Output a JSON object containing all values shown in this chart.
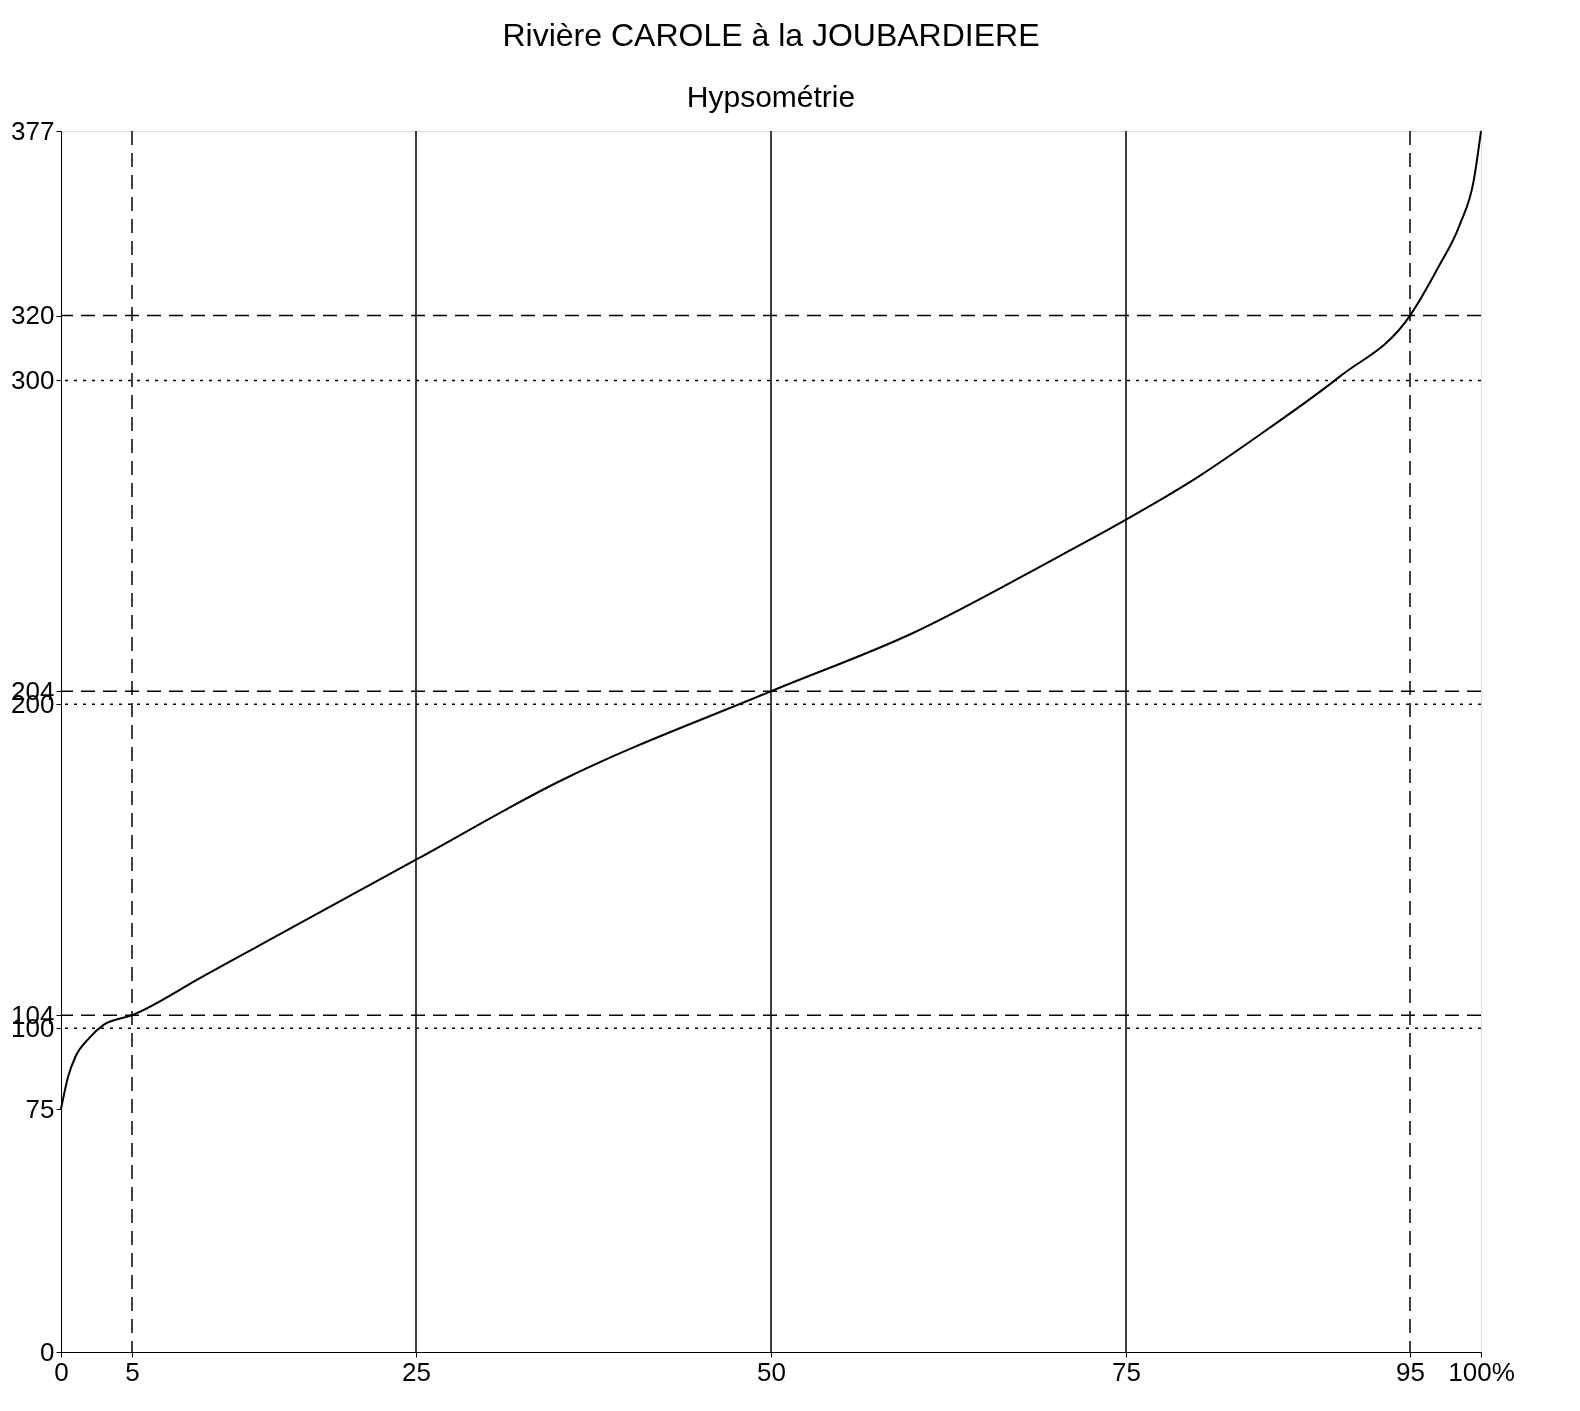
{
  "chart_data": {
    "type": "line",
    "title": "Rivière CAROLE à la JOUBARDIERE",
    "subtitle": "Hypsométrie",
    "x": [
      0,
      0.5,
      1,
      2,
      3,
      5,
      10,
      15,
      25,
      35,
      50,
      60,
      70,
      75,
      80,
      85,
      90,
      95,
      97,
      98.5,
      99.5,
      100
    ],
    "series": [
      {
        "color": "#000000",
        "values": [
          75,
          85,
          91,
          97,
          101,
          104,
          116,
          128,
          152,
          176,
          204,
          222,
          245,
          257,
          270,
          285,
          301,
          320,
          335,
          348,
          362,
          377
        ]
      }
    ],
    "xlim": [
      0,
      100
    ],
    "ylim": [
      0,
      377
    ],
    "xticks": [
      0,
      5,
      25,
      50,
      75,
      95,
      {
        "value": 100,
        "label": "100%"
      }
    ],
    "yticks": [
      0,
      75,
      100,
      104,
      200,
      204,
      300,
      320,
      377
    ],
    "grid": false,
    "marker": "none",
    "line_style": "solid",
    "ref_lines": [
      {
        "axis": "x",
        "value": 25,
        "line_style": "solid"
      },
      {
        "axis": "x",
        "value": 50,
        "line_style": "solid"
      },
      {
        "axis": "x",
        "value": 75,
        "line_style": "solid"
      },
      {
        "axis": "y",
        "value": 100,
        "line_style": "dotted"
      },
      {
        "axis": "y",
        "value": 200,
        "line_style": "dotted"
      },
      {
        "axis": "y",
        "value": 300,
        "line_style": "dotted"
      },
      {
        "axis": "y",
        "value": 320,
        "line_style": "dashed"
      },
      {
        "axis": "y",
        "value": 204,
        "line_style": "dashed"
      },
      {
        "axis": "y",
        "value": 104,
        "line_style": "dashed"
      },
      {
        "axis": "x",
        "value": 5,
        "line_style": "dashed"
      },
      {
        "axis": "x",
        "value": 95,
        "line_style": "dashed"
      }
    ]
  }
}
